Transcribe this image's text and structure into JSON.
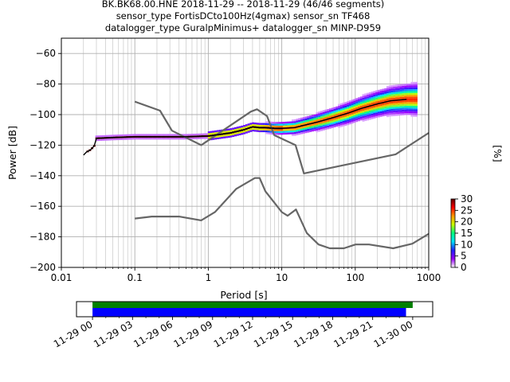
{
  "chart_data": {
    "type": "scatter",
    "title_lines": [
      "BK.BK68.00.HNE   2018-11-29 -- 2018-11-29  (46/46 segments)",
      "sensor_type FortisDCto100Hz(4gmax) sensor_sn TF468",
      "datalogger_type GuralpMinimus+ datalogger_sn MINP-D959"
    ],
    "xlabel": "Period [s]",
    "ylabel": "Power [dB]",
    "xscale": "log",
    "xlim": [
      0.01,
      1000
    ],
    "ylim": [
      -200,
      -50
    ],
    "xticks": [
      {
        "v": 0.01,
        "label": "0.01"
      },
      {
        "v": 0.1,
        "label": "0.1"
      },
      {
        "v": 1,
        "label": "1"
      },
      {
        "v": 10,
        "label": "10"
      },
      {
        "v": 100,
        "label": "100"
      },
      {
        "v": 1000,
        "label": "1000"
      }
    ],
    "yticks": [
      -60,
      -80,
      -100,
      -120,
      -140,
      -160,
      -180,
      -200
    ],
    "ytick_labels": [
      "−60",
      "−80",
      "−100",
      "−120",
      "−140",
      "−160",
      "−180",
      "−200"
    ],
    "grid": true,
    "noise_model_high": {
      "x": [
        0.1,
        0.22,
        0.32,
        0.8,
        3.8,
        4.6,
        6.3,
        7.9,
        15.4,
        20,
        354.8,
        1000
      ],
      "y": [
        -91.5,
        -97.4,
        -110.5,
        -120,
        -98,
        -96.5,
        -101,
        -113.5,
        -120,
        -138.5,
        -126,
        -112
      ]
    },
    "noise_model_low": {
      "x": [
        0.1,
        0.17,
        0.4,
        0.8,
        1.24,
        2.4,
        4.3,
        5,
        6,
        10,
        12,
        15.6,
        21.9,
        31.6,
        45,
        70,
        101,
        154,
        328,
        600,
        1000
      ],
      "y": [
        -168,
        -166.7,
        -166.7,
        -169.2,
        -163.7,
        -148.6,
        -141.5,
        -141.5,
        -150.2,
        -163.8,
        -166.2,
        -162.1,
        -177.5,
        -185,
        -187.5,
        -187.5,
        -185,
        -185,
        -187.5,
        -184.5,
        -178
      ]
    },
    "mode_curve": {
      "x": [
        0.02,
        0.022,
        0.025,
        0.028,
        0.03,
        0.05,
        0.1,
        0.2,
        0.5,
        1,
        2,
        3,
        4,
        5,
        6,
        8,
        10,
        15,
        20,
        30,
        50,
        80,
        120,
        200,
        300,
        500
      ],
      "y": [
        -126.5,
        -124.5,
        -123,
        -120.5,
        -115.5,
        -115,
        -114.5,
        -114.5,
        -114.5,
        -114,
        -112,
        -110,
        -108,
        -108.5,
        -108.5,
        -109,
        -109,
        -108.5,
        -107,
        -105,
        -102,
        -99,
        -96,
        -93,
        -91,
        -90
      ]
    },
    "colorbar": {
      "label": "[%]",
      "min": 0,
      "max": 30,
      "ticks": [
        0,
        5,
        10,
        15,
        20,
        25,
        30
      ],
      "colors": [
        "#ffffff",
        "#9a00ff",
        "#2020ff",
        "#00e0ff",
        "#00ff80",
        "#c8ff00",
        "#ff9900",
        "#ff0000",
        "#600000"
      ]
    },
    "coverage": {
      "xtick_labels": [
        "11-29 00",
        "11-29 03",
        "11-29 06",
        "11-29 09",
        "11-29 12",
        "11-29 15",
        "11-29 18",
        "11-29 21",
        "11-30 00"
      ],
      "xlim_hours": [
        -1.2,
        25.5
      ],
      "data_bar": {
        "start_hour": 0,
        "end_hour": 24.0,
        "color": "#008000"
      },
      "psd_bar": {
        "start_hour": 0,
        "end_hour": 23.5,
        "color": "#0000ff"
      }
    }
  }
}
